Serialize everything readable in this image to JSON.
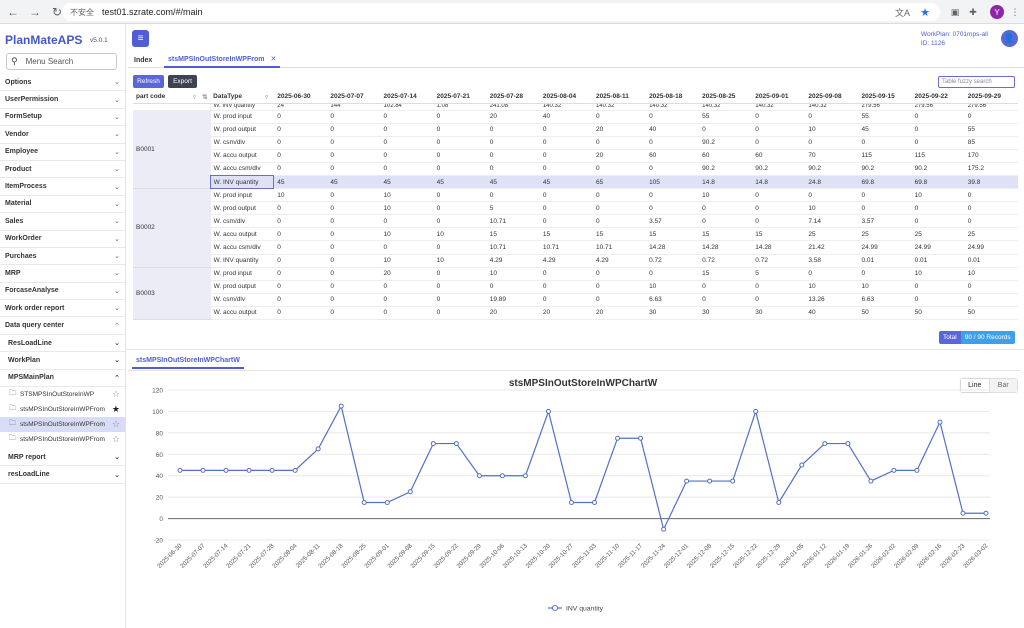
{
  "browser": {
    "security": "不安全",
    "url": "test01.szrate.com/#/main",
    "profile_initial": "Y"
  },
  "app": {
    "brand": "PlanMateAPS",
    "version": "v5.0.1",
    "menu_search_placeholder": "Menu Search",
    "workplan_line1": "WorkPlan: 0701mps-all",
    "workplan_line2": "ID: 1126"
  },
  "menu": [
    {
      "label": "Options",
      "state": "collapsed"
    },
    {
      "label": "UserPermission",
      "state": "collapsed"
    },
    {
      "label": "FormSetup",
      "state": "collapsed"
    },
    {
      "label": "Vendor",
      "state": "collapsed"
    },
    {
      "label": "Employee",
      "state": "collapsed"
    },
    {
      "label": "Product",
      "state": "collapsed"
    },
    {
      "label": "ItemProcess",
      "state": "collapsed"
    },
    {
      "label": "Material",
      "state": "collapsed"
    },
    {
      "label": "Sales",
      "state": "collapsed"
    },
    {
      "label": "WorkOrder",
      "state": "collapsed"
    },
    {
      "label": "Purchaes",
      "state": "collapsed"
    },
    {
      "label": "MRP",
      "state": "collapsed"
    },
    {
      "label": "ForcaseAnalyse",
      "state": "collapsed"
    },
    {
      "label": "Work order report",
      "state": "collapsed"
    },
    {
      "label": "Data query center",
      "state": "expanded"
    }
  ],
  "submenu": [
    {
      "label": "ResLoadLine",
      "state": "collapsed"
    },
    {
      "label": "WorkPlan",
      "state": "collapsed"
    },
    {
      "label": "MPSMainPlan",
      "state": "expanded"
    }
  ],
  "leaves": [
    {
      "label": "STSMPSInOutStoreInWP",
      "starred": false,
      "active": false
    },
    {
      "label": "stsMPSInOutStoreInWPFrom",
      "starred": true,
      "active": false
    },
    {
      "label": "stsMPSInOutStoreInWPFrom",
      "starred": false,
      "active": true
    },
    {
      "label": "stsMPSInOutStoreInWPFrom",
      "starred": false,
      "active": false
    }
  ],
  "submenu_after": [
    {
      "label": "MRP report",
      "state": "collapsed"
    },
    {
      "label": "resLoadLine",
      "state": "collapsed"
    }
  ],
  "tabs": {
    "index": "Index",
    "active": "stsMPSInOutStoreInWPFrom"
  },
  "toolbar": {
    "refresh": "Refresh",
    "export": "Export",
    "fuzzy_placeholder": "Table fuzzy search"
  },
  "table": {
    "col_part": "part code",
    "col_type": "DataType",
    "dates": [
      "2025-06-30",
      "2025-07-07",
      "2025-07-14",
      "2025-07-21",
      "2025-07-28",
      "2025-08-04",
      "2025-08-11",
      "2025-08-18",
      "2025-08-25",
      "2025-09-01",
      "2025-09-08",
      "2025-09-15",
      "2025-09-22",
      "2025-09-29"
    ],
    "top_partial": {
      "type": "W. INV quantity",
      "values": [
        "24",
        "144",
        "102.84",
        "1.08",
        "241.08",
        "140.32",
        "140.32",
        "140.32",
        "140.32",
        "140.32",
        "140.32",
        "279.56",
        "279.56",
        "279.56"
      ]
    },
    "groups": [
      {
        "part": "B0001",
        "rows": [
          {
            "type": "W. prod input",
            "values": [
              "0",
              "0",
              "0",
              "0",
              "20",
              "40",
              "0",
              "0",
              "55",
              "0",
              "0",
              "55",
              "0",
              "0"
            ]
          },
          {
            "type": "W. prod output",
            "values": [
              "0",
              "0",
              "0",
              "0",
              "0",
              "0",
              "20",
              "40",
              "0",
              "0",
              "10",
              "45",
              "0",
              "55"
            ]
          },
          {
            "type": "W. csm/dlv",
            "values": [
              "0",
              "0",
              "0",
              "0",
              "0",
              "0",
              "0",
              "0",
              "90.2",
              "0",
              "0",
              "0",
              "0",
              "85"
            ]
          },
          {
            "type": "W. accu output",
            "values": [
              "0",
              "0",
              "0",
              "0",
              "0",
              "0",
              "20",
              "60",
              "60",
              "60",
              "70",
              "115",
              "115",
              "170"
            ]
          },
          {
            "type": "W. accu csm/dlv",
            "values": [
              "0",
              "0",
              "0",
              "0",
              "0",
              "0",
              "0",
              "0",
              "90.2",
              "90.2",
              "90.2",
              "90.2",
              "90.2",
              "175.2"
            ]
          },
          {
            "type": "W. INV quantity",
            "values": [
              "45",
              "45",
              "45",
              "45",
              "45",
              "45",
              "65",
              "105",
              "14.8",
              "14.8",
              "24.8",
              "69.8",
              "69.8",
              "39.8"
            ],
            "highlight": true
          }
        ]
      },
      {
        "part": "B0002",
        "rows": [
          {
            "type": "W. prod input",
            "values": [
              "10",
              "0",
              "10",
              "0",
              "0",
              "0",
              "0",
              "0",
              "10",
              "0",
              "0",
              "0",
              "10",
              "0"
            ]
          },
          {
            "type": "W. prod output",
            "values": [
              "0",
              "0",
              "10",
              "0",
              "5",
              "0",
              "0",
              "0",
              "0",
              "0",
              "10",
              "0",
              "0",
              "0"
            ]
          },
          {
            "type": "W. csm/dlv",
            "values": [
              "0",
              "0",
              "0",
              "0",
              "10.71",
              "0",
              "0",
              "3.57",
              "0",
              "0",
              "7.14",
              "3.57",
              "0",
              "0"
            ]
          },
          {
            "type": "W. accu output",
            "values": [
              "0",
              "0",
              "10",
              "10",
              "15",
              "15",
              "15",
              "15",
              "15",
              "15",
              "25",
              "25",
              "25",
              "25"
            ]
          },
          {
            "type": "W. accu csm/dlv",
            "values": [
              "0",
              "0",
              "0",
              "0",
              "10.71",
              "10.71",
              "10.71",
              "14.28",
              "14.28",
              "14.28",
              "21.42",
              "24.99",
              "24.99",
              "24.99"
            ]
          },
          {
            "type": "W. INV quantity",
            "values": [
              "0",
              "0",
              "10",
              "10",
              "4.29",
              "4.29",
              "4.29",
              "0.72",
              "0.72",
              "0.72",
              "3.58",
              "0.01",
              "0.01",
              "0.01"
            ]
          }
        ]
      },
      {
        "part": "B0003",
        "rows": [
          {
            "type": "W. prod input",
            "values": [
              "0",
              "0",
              "20",
              "0",
              "10",
              "0",
              "0",
              "0",
              "15",
              "5",
              "0",
              "0",
              "10",
              "10"
            ]
          },
          {
            "type": "W. prod output",
            "values": [
              "0",
              "0",
              "0",
              "0",
              "0",
              "0",
              "0",
              "10",
              "0",
              "0",
              "10",
              "10",
              "0",
              "0"
            ]
          },
          {
            "type": "W. csm/dlv",
            "values": [
              "0",
              "0",
              "0",
              "0",
              "19.89",
              "0",
              "0",
              "6.63",
              "0",
              "0",
              "13.26",
              "6.63",
              "0",
              "0"
            ]
          },
          {
            "type": "W. accu output",
            "values": [
              "0",
              "0",
              "0",
              "0",
              "20",
              "20",
              "20",
              "30",
              "30",
              "30",
              "40",
              "50",
              "50",
              "50"
            ]
          }
        ]
      }
    ]
  },
  "pagination": {
    "total_label": "Total",
    "records": "90 / 90 Records"
  },
  "chart_tab": "stsMPSInOutStoreInWPChartW",
  "chart_toggle": {
    "line": "Line",
    "bar": "Bar",
    "selected": "Line"
  },
  "colors": {
    "accent": "#4f5ed6",
    "series": "#5470c6"
  },
  "chart_data": {
    "type": "line",
    "title": "stsMPSInOutStoreInWPChartW",
    "ylim": [
      -20,
      120
    ],
    "yticks": [
      -20,
      0,
      20,
      40,
      60,
      80,
      100,
      120
    ],
    "legend_position": "bottom-center",
    "grid": true,
    "x": [
      "2025-06-30",
      "2025-07-07",
      "2025-07-14",
      "2025-07-21",
      "2025-07-28",
      "2025-08-04",
      "2025-08-11",
      "2025-08-18",
      "2025-08-25",
      "2025-09-01",
      "2025-09-08",
      "2025-09-15",
      "2025-09-22",
      "2025-09-29",
      "2025-10-06",
      "2025-10-13",
      "2025-10-20",
      "2025-10-27",
      "2025-11-03",
      "2025-11-10",
      "2025-11-17",
      "2025-11-24",
      "2025-12-01",
      "2025-12-08",
      "2025-12-15",
      "2025-12-22",
      "2025-12-29",
      "2026-01-05",
      "2026-01-12",
      "2026-01-19",
      "2026-01-26",
      "2026-02-02",
      "2026-02-09",
      "2026-02-16",
      "2026-02-23",
      "2026-03-02"
    ],
    "series": [
      {
        "name": "INV quantity",
        "values": [
          45,
          45,
          45,
          45,
          45,
          45,
          65,
          105,
          15,
          15,
          25,
          70,
          70,
          40,
          40,
          40,
          100,
          15,
          15,
          75,
          75,
          -10,
          35,
          35,
          35,
          100,
          15,
          50,
          70,
          70,
          35,
          45,
          45,
          90,
          5,
          5
        ]
      }
    ]
  }
}
